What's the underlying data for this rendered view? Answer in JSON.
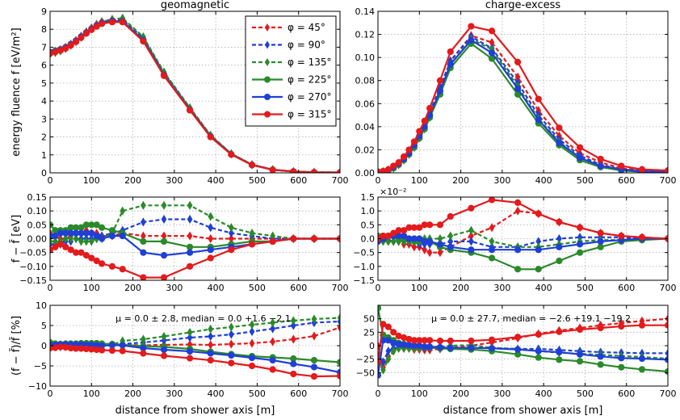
{
  "chart_data": {
    "type": "line",
    "figure_xlabel": "distance from shower axis [m]",
    "xlim": [
      0,
      700
    ],
    "xticks": [
      0,
      100,
      200,
      300,
      400,
      500,
      600,
      700
    ],
    "x": [
      0,
      12.5,
      25,
      37.5,
      50,
      62.5,
      75,
      87.5,
      100,
      112.5,
      125,
      150,
      175,
      225,
      275,
      337.5,
      387.5,
      437.5,
      487.5,
      537.5,
      587.5,
      637.5,
      700
    ],
    "legend": [
      {
        "name": "φ = 45°",
        "color": "#e41a1c",
        "style": "dashed",
        "marker": "diamond"
      },
      {
        "name": "φ = 90°",
        "color": "#1f3fd6",
        "style": "dashed",
        "marker": "diamond"
      },
      {
        "name": "φ = 135°",
        "color": "#2a8a2a",
        "style": "dashed",
        "marker": "diamond"
      },
      {
        "name": "φ = 225°",
        "color": "#2a8a2a",
        "style": "solid",
        "marker": "circle"
      },
      {
        "name": "φ = 270°",
        "color": "#1f3fd6",
        "style": "solid",
        "marker": "circle"
      },
      {
        "name": "φ = 315°",
        "color": "#e41a1c",
        "style": "solid",
        "marker": "circle"
      }
    ],
    "panels": [
      {
        "id": "geo-top",
        "title": "geomagnetic",
        "ylabel": "energy fluence f  [eV/m²]",
        "ylim": [
          0,
          9
        ],
        "yticks": [
          0,
          1,
          2,
          3,
          4,
          5,
          6,
          7,
          8,
          9
        ],
        "ytick_labels": [
          "0",
          "1",
          "2",
          "3",
          "4",
          "5",
          "6",
          "7",
          "8",
          "9"
        ],
        "series": [
          [
            6.7,
            6.78,
            6.87,
            7.0,
            7.18,
            7.38,
            7.62,
            7.86,
            8.08,
            8.28,
            8.43,
            8.55,
            8.52,
            7.46,
            5.51,
            3.55,
            2.05,
            1.05,
            0.45,
            0.18,
            0.07,
            0.03,
            0.02
          ],
          [
            6.66,
            6.74,
            6.83,
            6.96,
            7.14,
            7.34,
            7.58,
            7.82,
            8.04,
            8.24,
            8.4,
            8.52,
            8.55,
            7.52,
            5.57,
            3.6,
            2.08,
            1.06,
            0.46,
            0.18,
            0.07,
            0.03,
            0.02
          ],
          [
            6.62,
            6.7,
            6.79,
            6.92,
            7.1,
            7.3,
            7.55,
            7.8,
            8.03,
            8.24,
            8.41,
            8.55,
            8.62,
            7.58,
            5.62,
            3.63,
            2.1,
            1.07,
            0.46,
            0.18,
            0.07,
            0.03,
            0.02
          ],
          [
            6.74,
            6.8,
            6.88,
            7.0,
            7.17,
            7.36,
            7.59,
            7.82,
            8.03,
            8.22,
            8.36,
            8.46,
            8.45,
            7.4,
            5.47,
            3.5,
            2.02,
            1.03,
            0.44,
            0.17,
            0.07,
            0.03,
            0.02
          ],
          [
            6.7,
            6.77,
            6.86,
            6.98,
            7.15,
            7.35,
            7.58,
            7.81,
            8.02,
            8.21,
            8.36,
            8.46,
            8.44,
            7.39,
            5.45,
            3.51,
            2.03,
            1.03,
            0.44,
            0.17,
            0.07,
            0.03,
            0.02
          ],
          [
            6.65,
            6.73,
            6.82,
            6.93,
            7.1,
            7.3,
            7.53,
            7.77,
            7.97,
            8.16,
            8.31,
            8.4,
            8.4,
            7.33,
            5.41,
            3.49,
            2.0,
            1.02,
            0.44,
            0.17,
            0.07,
            0.03,
            0.02
          ]
        ]
      },
      {
        "id": "ce-top",
        "title": "charge-excess",
        "ylabel": "",
        "ylim": [
          0,
          0.14
        ],
        "yticks": [
          0,
          0.02,
          0.04,
          0.06,
          0.08,
          0.1,
          0.12,
          0.14
        ],
        "ytick_labels": [
          "0.00",
          "0.02",
          "0.04",
          "0.06",
          "0.08",
          "0.10",
          "0.12",
          "0.14"
        ],
        "series": [
          [
            0.0005,
            0.001,
            0.0025,
            0.005,
            0.008,
            0.012,
            0.018,
            0.025,
            0.033,
            0.042,
            0.052,
            0.074,
            0.097,
            0.119,
            0.113,
            0.083,
            0.054,
            0.032,
            0.017,
            0.009,
            0.004,
            0.002,
            0.001
          ],
          [
            0.0005,
            0.001,
            0.0025,
            0.005,
            0.008,
            0.012,
            0.018,
            0.025,
            0.033,
            0.042,
            0.052,
            0.074,
            0.097,
            0.118,
            0.108,
            0.078,
            0.05,
            0.029,
            0.015,
            0.007,
            0.003,
            0.002,
            0.001
          ],
          [
            0.0005,
            0.001,
            0.002,
            0.004,
            0.007,
            0.011,
            0.016,
            0.022,
            0.03,
            0.038,
            0.048,
            0.07,
            0.094,
            0.116,
            0.107,
            0.075,
            0.047,
            0.027,
            0.013,
            0.006,
            0.003,
            0.001,
            0.001
          ],
          [
            0.0005,
            0.001,
            0.002,
            0.004,
            0.007,
            0.011,
            0.016,
            0.022,
            0.03,
            0.038,
            0.048,
            0.068,
            0.091,
            0.112,
            0.099,
            0.068,
            0.043,
            0.024,
            0.011,
            0.005,
            0.002,
            0.001,
            0.0005
          ],
          [
            0.0005,
            0.001,
            0.0025,
            0.005,
            0.008,
            0.012,
            0.017,
            0.024,
            0.032,
            0.04,
            0.05,
            0.071,
            0.094,
            0.115,
            0.104,
            0.073,
            0.046,
            0.026,
            0.013,
            0.006,
            0.003,
            0.001,
            0.001
          ],
          [
            0.001,
            0.0015,
            0.003,
            0.006,
            0.009,
            0.014,
            0.02,
            0.027,
            0.036,
            0.045,
            0.056,
            0.08,
            0.105,
            0.127,
            0.123,
            0.096,
            0.064,
            0.039,
            0.022,
            0.012,
            0.006,
            0.003,
            0.002
          ]
        ]
      },
      {
        "id": "geo-mid",
        "title": "",
        "ylabel": "f − f̄  [eV]",
        "ylim": [
          -0.15,
          0.15
        ],
        "yticks": [
          -0.15,
          -0.1,
          -0.05,
          0,
          0.05,
          0.1,
          0.15
        ],
        "ytick_labels": [
          "−0.15",
          "−0.10",
          "−0.05",
          "0.00",
          "0.05",
          "0.10",
          "0.15"
        ],
        "series": [
          [
            0.02,
            0.01,
            0.0,
            0.0,
            0.01,
            0.02,
            0.02,
            0.03,
            0.02,
            0.02,
            0.01,
            0.01,
            0.02,
            0.01,
            0.01,
            0.01,
            0.0,
            0.0,
            0.0,
            0.0,
            0.0,
            0.0,
            0.0
          ],
          [
            -0.02,
            -0.02,
            -0.02,
            -0.01,
            -0.01,
            0.0,
            0.0,
            0.0,
            0.0,
            0.0,
            0.01,
            0.02,
            0.03,
            0.06,
            0.07,
            0.07,
            0.04,
            0.02,
            0.01,
            0.0,
            0.0,
            0.0,
            0.0
          ],
          [
            -0.01,
            -0.01,
            -0.01,
            0.0,
            0.0,
            0.0,
            -0.01,
            -0.01,
            -0.01,
            0.0,
            0.0,
            0.02,
            0.1,
            0.12,
            0.12,
            0.12,
            0.08,
            0.04,
            0.02,
            0.01,
            0.0,
            0.0,
            0.0
          ],
          [
            0.05,
            0.03,
            0.03,
            0.03,
            0.04,
            0.04,
            0.04,
            0.05,
            0.05,
            0.05,
            0.04,
            0.03,
            0.02,
            -0.01,
            -0.01,
            -0.03,
            -0.03,
            -0.02,
            -0.01,
            -0.01,
            0.0,
            0.0,
            0.0
          ],
          [
            0.01,
            0.01,
            0.02,
            0.02,
            0.02,
            0.02,
            0.02,
            0.02,
            0.02,
            0.01,
            0.0,
            0.01,
            0.01,
            -0.05,
            -0.06,
            -0.05,
            -0.04,
            -0.03,
            -0.02,
            -0.01,
            0.0,
            0.0,
            0.0
          ],
          [
            -0.04,
            -0.03,
            -0.02,
            -0.03,
            -0.04,
            -0.05,
            -0.05,
            -0.06,
            -0.07,
            -0.08,
            -0.09,
            -0.1,
            -0.11,
            -0.14,
            -0.14,
            -0.1,
            -0.07,
            -0.04,
            -0.02,
            -0.01,
            0.0,
            0.0,
            0.0
          ]
        ]
      },
      {
        "id": "ce-mid",
        "title": "",
        "ylabel": "",
        "scale_label": "×10⁻²",
        "ylim": [
          -1.5,
          1.5
        ],
        "yticks": [
          -1.5,
          -1.0,
          -0.5,
          0,
          0.5,
          1.0,
          1.5
        ],
        "ytick_labels": [
          "−1.5",
          "−1.0",
          "−0.5",
          "0.0",
          "0.5",
          "1.0",
          "1.5"
        ],
        "series": [
          [
            0.0,
            -0.05,
            -0.1,
            -0.1,
            -0.1,
            -0.2,
            -0.2,
            -0.3,
            -0.3,
            -0.4,
            -0.5,
            -0.5,
            -0.3,
            0.1,
            0.4,
            1.0,
            0.9,
            0.6,
            0.4,
            0.2,
            0.1,
            0.05,
            0.0
          ],
          [
            0.0,
            -0.05,
            -0.05,
            -0.1,
            -0.1,
            -0.1,
            -0.1,
            -0.1,
            -0.2,
            -0.2,
            -0.2,
            -0.2,
            -0.1,
            -0.1,
            -0.3,
            -0.3,
            -0.1,
            0.0,
            0.05,
            0.05,
            0.05,
            0.0,
            0.0
          ],
          [
            0.0,
            -0.1,
            -0.1,
            -0.1,
            -0.1,
            -0.1,
            -0.1,
            -0.1,
            -0.1,
            0.0,
            0.0,
            0.0,
            0.1,
            0.3,
            -0.1,
            -0.3,
            -0.3,
            -0.2,
            -0.1,
            -0.05,
            -0.05,
            0.0,
            0.0
          ],
          [
            0.1,
            0.1,
            0.1,
            0.1,
            0.0,
            0.0,
            0.0,
            -0.1,
            -0.1,
            -0.1,
            -0.1,
            -0.3,
            -0.4,
            -0.5,
            -0.7,
            -1.1,
            -1.1,
            -0.8,
            -0.5,
            -0.3,
            -0.1,
            -0.05,
            0.0
          ],
          [
            -0.1,
            0.0,
            0.1,
            0.1,
            0.1,
            0.1,
            0.0,
            0.0,
            0.0,
            -0.1,
            -0.1,
            -0.2,
            -0.3,
            -0.4,
            -0.4,
            -0.4,
            -0.4,
            -0.3,
            -0.2,
            -0.1,
            -0.05,
            0.0,
            0.0
          ],
          [
            0.0,
            0.1,
            0.1,
            0.2,
            0.3,
            0.3,
            0.4,
            0.4,
            0.4,
            0.5,
            0.5,
            0.5,
            0.8,
            1.1,
            1.4,
            1.3,
            0.9,
            0.6,
            0.4,
            0.2,
            0.1,
            0.05,
            0.0
          ]
        ]
      },
      {
        "id": "geo-bot",
        "title": "",
        "ylabel": "(f − f̄)/f̄ [%]",
        "ylim": [
          -10,
          10
        ],
        "yticks": [
          -10,
          -5,
          0,
          5,
          10
        ],
        "ytick_labels": [
          "−10",
          "−5",
          "0",
          "5",
          "10"
        ],
        "annotation": "μ = 0.0 ± 2.8, median = 0.0 +1.6 −2.1",
        "series": [
          [
            0.3,
            0.2,
            0.1,
            0.0,
            0.1,
            0.2,
            0.2,
            0.3,
            0.2,
            0.2,
            0.1,
            0.1,
            0.2,
            0.1,
            0.2,
            0.3,
            0.2,
            0.4,
            0.6,
            1.0,
            1.6,
            2.4,
            4.5
          ],
          [
            -0.3,
            -0.3,
            -0.3,
            -0.2,
            -0.1,
            0.0,
            0.0,
            0.0,
            0.0,
            0.0,
            0.1,
            0.2,
            0.4,
            0.8,
            1.3,
            2.0,
            2.3,
            2.8,
            3.5,
            4.2,
            5.0,
            5.7,
            6.0
          ],
          [
            -0.2,
            -0.2,
            -0.2,
            0.0,
            0.0,
            0.0,
            -0.1,
            -0.1,
            -0.1,
            0.0,
            0.0,
            0.2,
            1.2,
            1.6,
            2.3,
            3.3,
            4.1,
            4.6,
            5.2,
            5.7,
            6.2,
            6.6,
            6.9
          ],
          [
            0.8,
            0.5,
            0.4,
            0.5,
            0.5,
            0.5,
            0.6,
            0.6,
            0.6,
            0.6,
            0.5,
            0.4,
            0.2,
            -0.1,
            -0.3,
            -0.8,
            -1.5,
            -2.1,
            -2.6,
            -2.9,
            -3.2,
            -3.6,
            -4.1
          ],
          [
            0.2,
            0.2,
            0.3,
            0.3,
            0.3,
            0.3,
            0.3,
            0.2,
            0.2,
            0.1,
            0.0,
            0.1,
            0.1,
            -0.6,
            -1.0,
            -1.4,
            -1.9,
            -2.4,
            -3.0,
            -3.6,
            -4.5,
            -5.3,
            -6.6
          ],
          [
            -0.6,
            -0.5,
            -0.3,
            -0.4,
            -0.6,
            -0.7,
            -0.7,
            -0.8,
            -0.9,
            -1.0,
            -1.1,
            -1.2,
            -1.3,
            -1.9,
            -2.5,
            -3.1,
            -3.6,
            -4.3,
            -5.0,
            -5.9,
            -7.0,
            -7.6,
            -7.5
          ]
        ]
      },
      {
        "id": "ce-bot",
        "title": "",
        "ylabel": "",
        "ylim": [
          -75,
          75
        ],
        "yticks": [
          -50,
          -25,
          0,
          25,
          50
        ],
        "ytick_labels": [
          "−50",
          "−25",
          "0",
          "25",
          "50"
        ],
        "annotation": "μ = 0.0 ± 27.7, median = −2.6 +19.1 −19.2",
        "series": [
          [
            0,
            -40,
            -20,
            -10,
            -5,
            -5,
            -5,
            -7,
            -7,
            -8,
            -8,
            -6,
            -4,
            0,
            6,
            14,
            22,
            28,
            33,
            38,
            42,
            46,
            50
          ],
          [
            -20,
            -30,
            -10,
            -5,
            -3,
            -2,
            -2,
            -2,
            -4,
            -4,
            -4,
            -4,
            -4,
            -4,
            -4,
            -6,
            -6,
            -8,
            -10,
            -12,
            -13,
            -14,
            -14
          ],
          [
            -20,
            -45,
            -25,
            -10,
            -5,
            -5,
            -5,
            -5,
            -5,
            -2,
            -2,
            -2,
            0,
            1,
            -4,
            -6,
            -10,
            -13,
            -15,
            -17,
            -19,
            -21,
            -24
          ],
          [
            70,
            20,
            15,
            10,
            5,
            3,
            1,
            -1,
            -2,
            -3,
            -3,
            -5,
            -6,
            -7,
            -10,
            -16,
            -22,
            -26,
            -29,
            -35,
            -40,
            -44,
            -48
          ],
          [
            -55,
            10,
            10,
            5,
            3,
            2,
            1,
            0,
            0,
            -2,
            -2,
            -3,
            -4,
            -4,
            -5,
            -7,
            -10,
            -12,
            -16,
            -20,
            -23,
            -24,
            -26
          ],
          [
            -30,
            40,
            35,
            25,
            18,
            15,
            12,
            10,
            10,
            10,
            10,
            9,
            9,
            9,
            11,
            16,
            21,
            26,
            30,
            33,
            36,
            38,
            38
          ]
        ]
      }
    ]
  }
}
